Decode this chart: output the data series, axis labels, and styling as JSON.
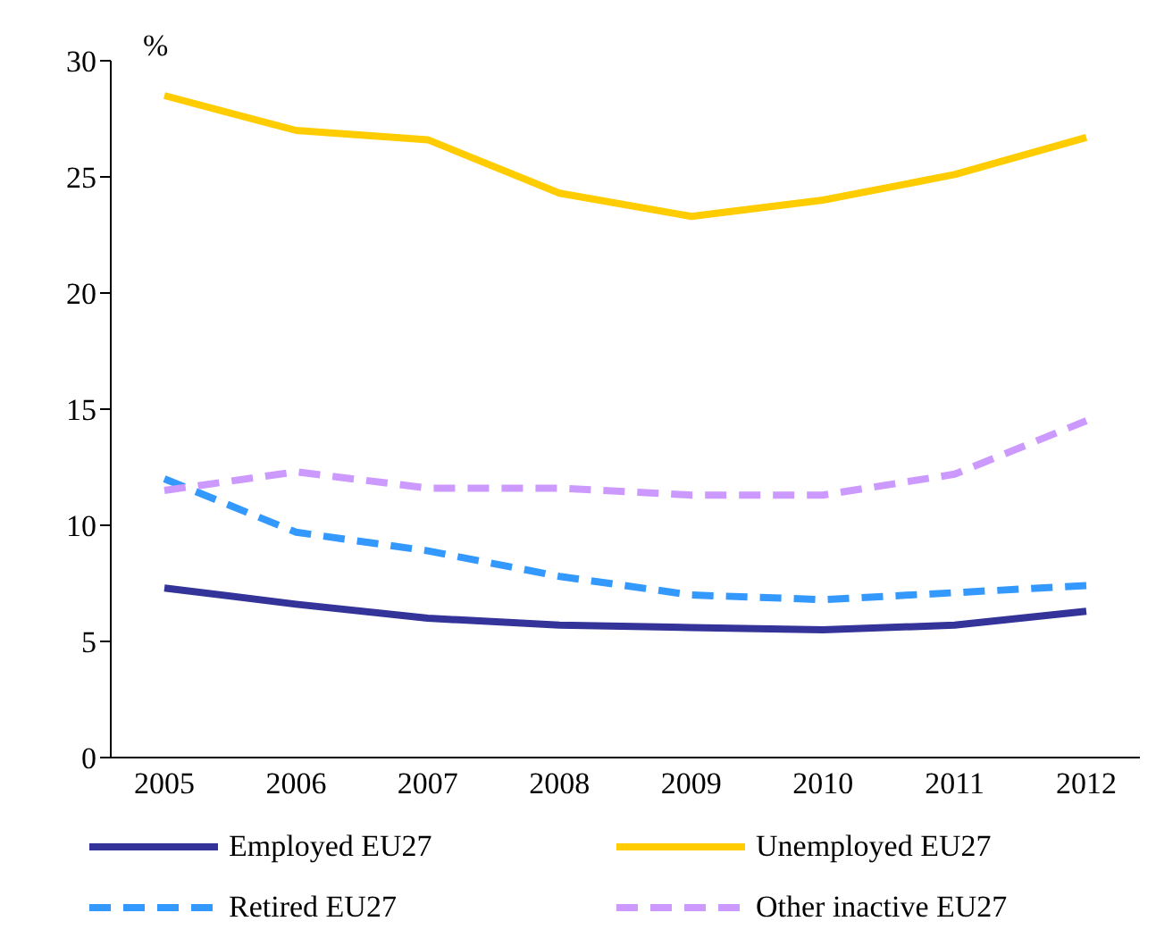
{
  "chart_data": {
    "type": "line",
    "ylabel": "%",
    "categories": [
      "2005",
      "2006",
      "2007",
      "2008",
      "2009",
      "2010",
      "2011",
      "2012"
    ],
    "series": [
      {
        "name": "Employed EU27",
        "color": "#333399",
        "line_style": "solid",
        "values": [
          7.3,
          6.6,
          6.0,
          5.7,
          5.6,
          5.5,
          5.7,
          6.3
        ]
      },
      {
        "name": "Unemployed EU27",
        "color": "#ffcc00",
        "line_style": "solid",
        "values": [
          28.5,
          27.0,
          26.6,
          24.3,
          23.3,
          24.0,
          25.1,
          26.7
        ]
      },
      {
        "name": "Retired EU27",
        "color": "#3399ff",
        "line_style": "dashed",
        "values": [
          12.0,
          9.7,
          8.9,
          7.8,
          7.0,
          6.8,
          7.1,
          7.4
        ]
      },
      {
        "name": "Other inactive EU27",
        "color": "#cc99ff",
        "line_style": "dashed",
        "values": [
          11.5,
          12.3,
          11.6,
          11.6,
          11.3,
          11.3,
          12.2,
          14.5
        ]
      }
    ],
    "ylim": [
      0,
      30
    ],
    "yticks": [
      0,
      5,
      10,
      15,
      20,
      25,
      30
    ],
    "grid": false,
    "legend": "bottom",
    "marker": "none"
  }
}
